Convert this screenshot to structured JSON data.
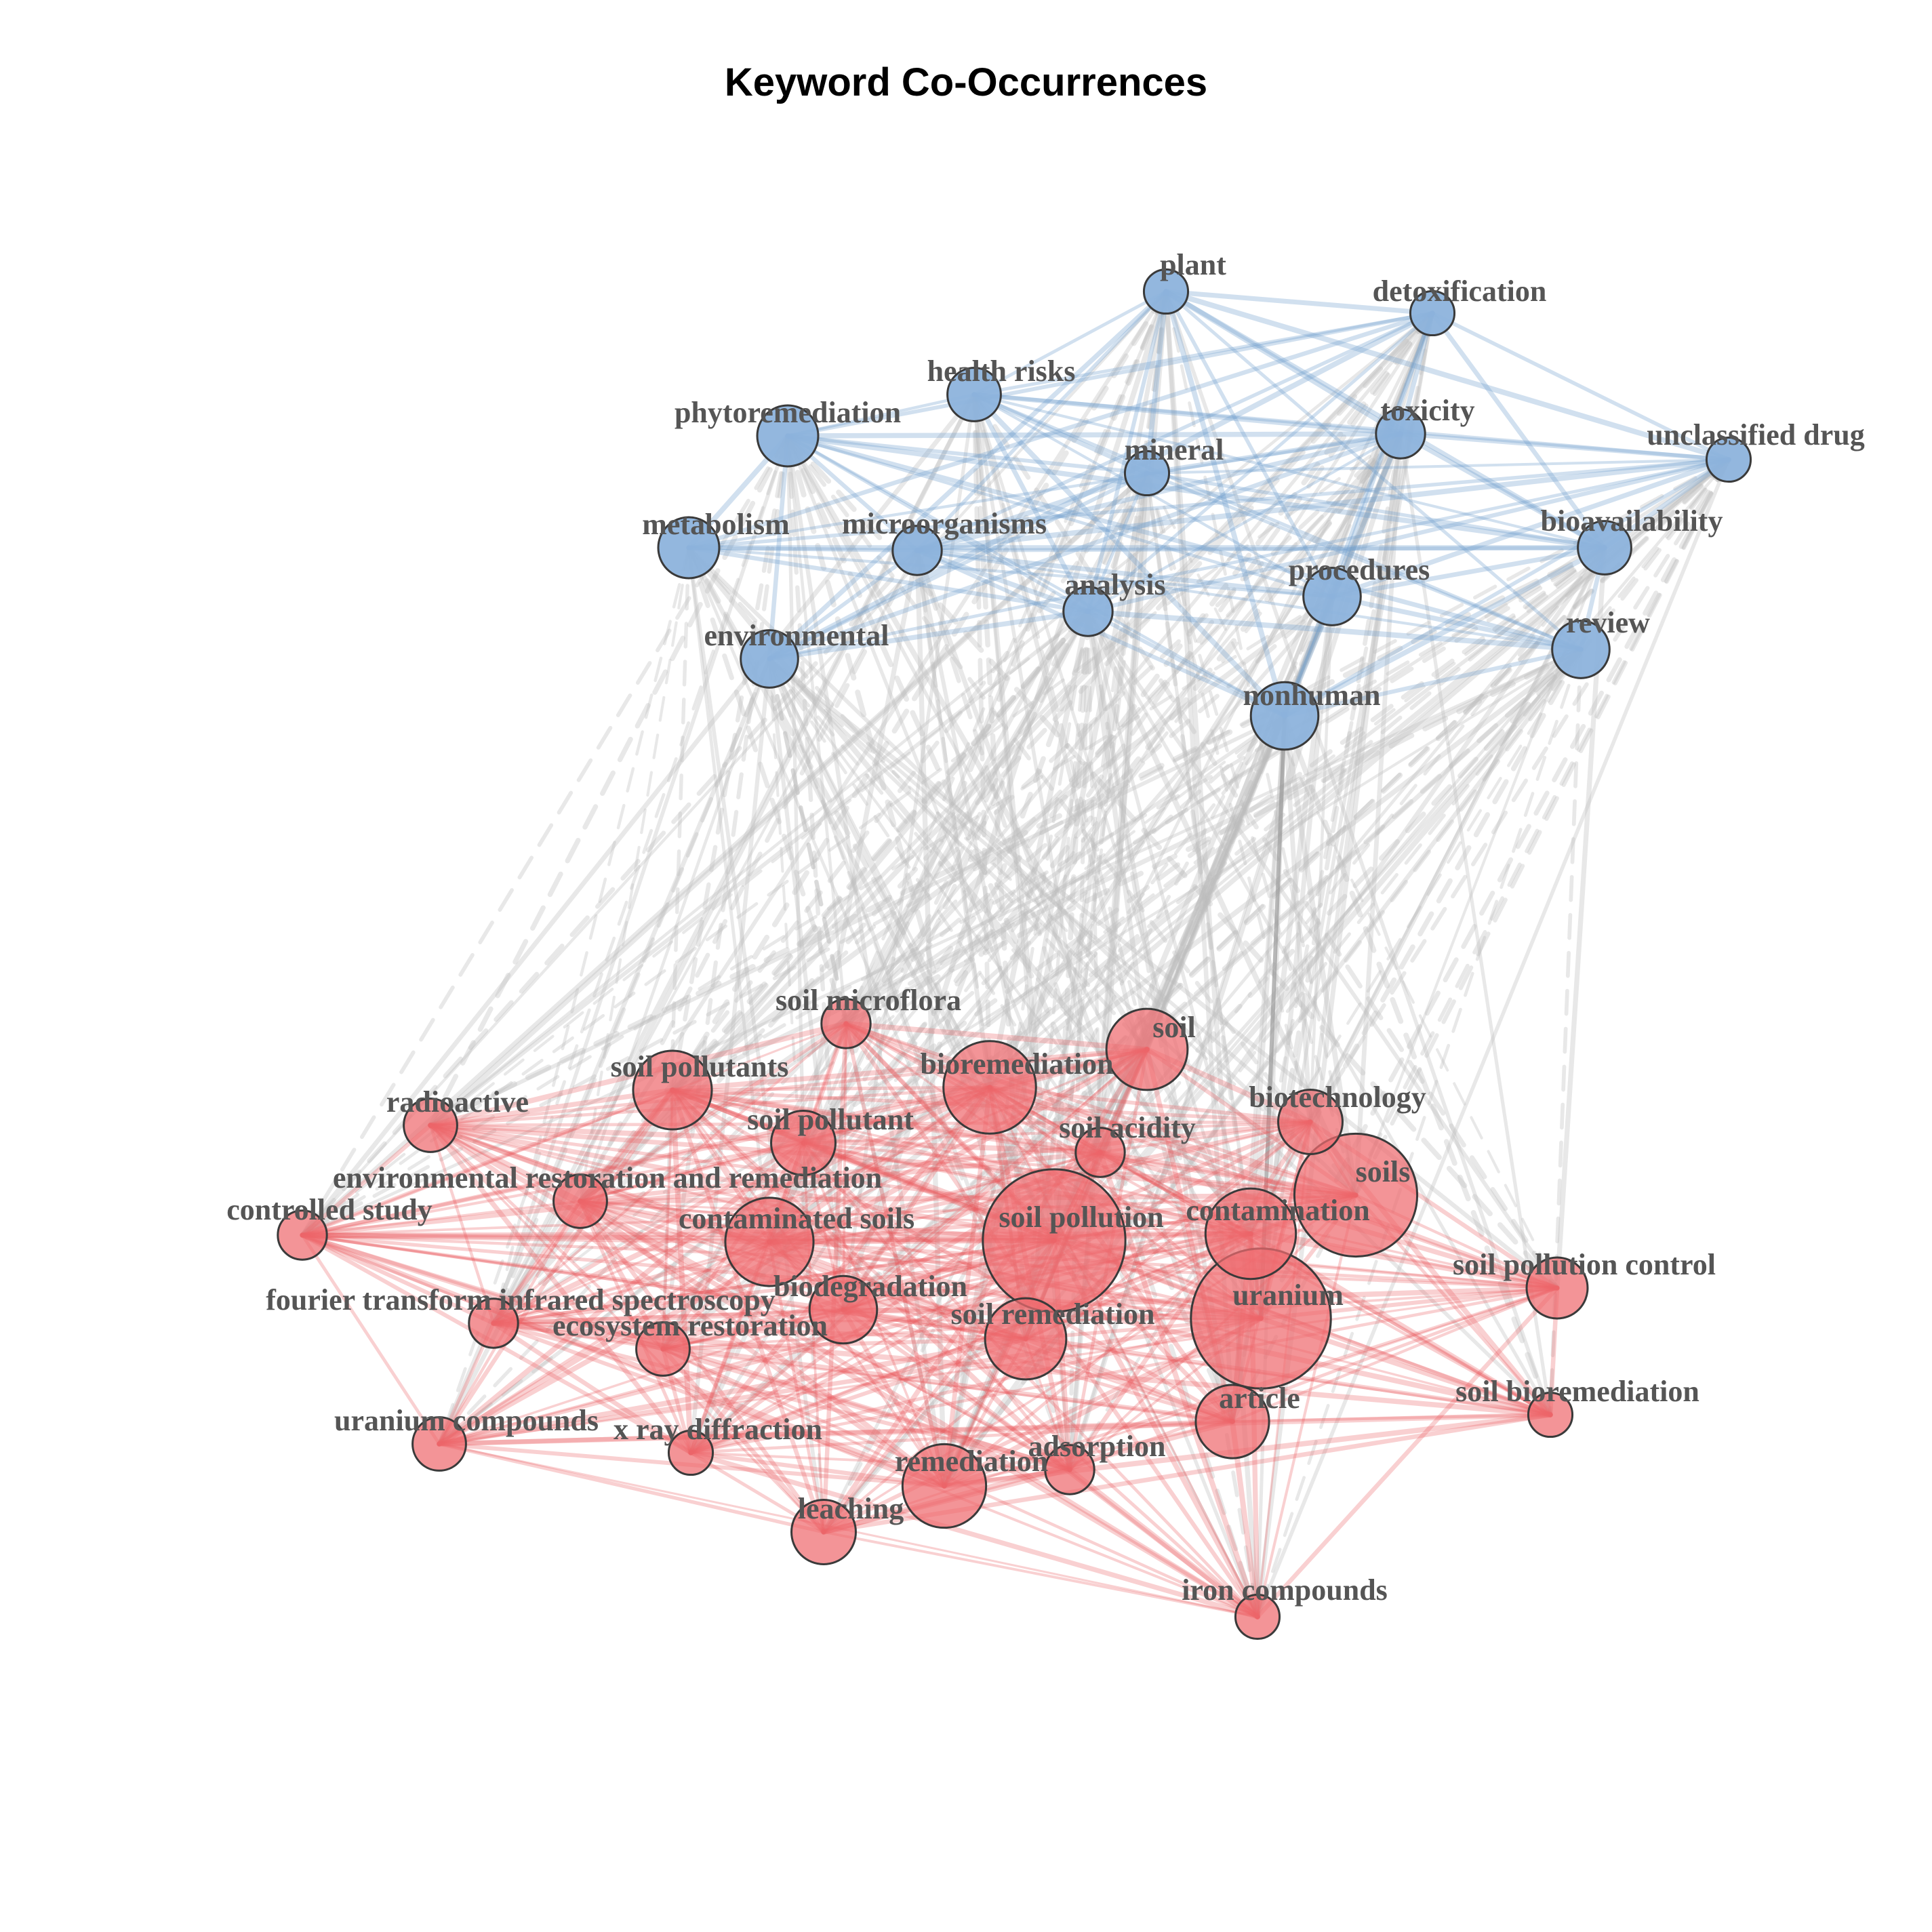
{
  "title": "Keyword Co-Occurrences",
  "colors": {
    "cluster_blue": "#8db3dc",
    "cluster_blue_edge": "#6f9fcd",
    "cluster_red": "#ee6b6f",
    "cluster_red_edge": "#e8555a",
    "between_edge": "#bdbdbd",
    "label": "#555555"
  },
  "nodes": [
    {
      "label": "plant",
      "cluster": "blue",
      "weight": 3
    },
    {
      "label": "detoxification",
      "cluster": "blue",
      "weight": 3
    },
    {
      "label": "health risks",
      "cluster": "blue",
      "weight": 5
    },
    {
      "label": "phytoremediation",
      "cluster": "blue",
      "weight": 7
    },
    {
      "label": "toxicity",
      "cluster": "blue",
      "weight": 4
    },
    {
      "label": "unclassified drug",
      "cluster": "blue",
      "weight": 3
    },
    {
      "label": "mineral",
      "cluster": "blue",
      "weight": 3
    },
    {
      "label": "metabolism",
      "cluster": "blue",
      "weight": 7
    },
    {
      "label": "microorganisms",
      "cluster": "blue",
      "weight": 4
    },
    {
      "label": "bioavailability",
      "cluster": "blue",
      "weight": 5
    },
    {
      "label": "analysis",
      "cluster": "blue",
      "weight": 4
    },
    {
      "label": "procedures",
      "cluster": "blue",
      "weight": 6
    },
    {
      "label": "review",
      "cluster": "blue",
      "weight": 6
    },
    {
      "label": "environmental",
      "cluster": "blue",
      "weight": 6
    },
    {
      "label": "nonhuman",
      "cluster": "blue",
      "weight": 9
    },
    {
      "label": "soil microflora",
      "cluster": "red",
      "weight": 4
    },
    {
      "label": "soil",
      "cluster": "red",
      "weight": 14
    },
    {
      "label": "soil pollutants",
      "cluster": "red",
      "weight": 13
    },
    {
      "label": "bioremediation",
      "cluster": "red",
      "weight": 19
    },
    {
      "label": "biotechnology",
      "cluster": "red",
      "weight": 8
    },
    {
      "label": "radioactive",
      "cluster": "red",
      "weight": 5
    },
    {
      "label": "soil pollutant",
      "cluster": "red",
      "weight": 8
    },
    {
      "label": "soil acidity",
      "cluster": "red",
      "weight": 4
    },
    {
      "label": "soils",
      "cluster": "red",
      "weight": 36
    },
    {
      "label": "environmental restoration and remediation",
      "cluster": "red",
      "weight": 5
    },
    {
      "label": "controlled study",
      "cluster": "red",
      "weight": 4
    },
    {
      "label": "soil pollution",
      "cluster": "red",
      "weight": 50
    },
    {
      "label": "contaminated soils",
      "cluster": "red",
      "weight": 17
    },
    {
      "label": "contamination",
      "cluster": "red",
      "weight": 18
    },
    {
      "label": "soil pollution control",
      "cluster": "red",
      "weight": 7
    },
    {
      "label": "uranium",
      "cluster": "red",
      "weight": 48
    },
    {
      "label": "biodegradation",
      "cluster": "red",
      "weight": 9
    },
    {
      "label": "fourier transform infrared spectroscopy",
      "cluster": "red",
      "weight": 4
    },
    {
      "label": "soil remediation",
      "cluster": "red",
      "weight": 14
    },
    {
      "label": "ecosystem restoration",
      "cluster": "red",
      "weight": 5
    },
    {
      "label": "article",
      "cluster": "red",
      "weight": 11
    },
    {
      "label": "soil bioremediation",
      "cluster": "red",
      "weight": 3
    },
    {
      "label": "uranium compounds",
      "cluster": "red",
      "weight": 5
    },
    {
      "label": "x ray diffraction",
      "cluster": "red",
      "weight": 3
    },
    {
      "label": "adsorption",
      "cluster": "red",
      "weight": 4
    },
    {
      "label": "remediation",
      "cluster": "red",
      "weight": 15
    },
    {
      "label": "leaching",
      "cluster": "red",
      "weight": 8
    },
    {
      "label": "iron compounds",
      "cluster": "red",
      "weight": 3
    }
  ]
}
